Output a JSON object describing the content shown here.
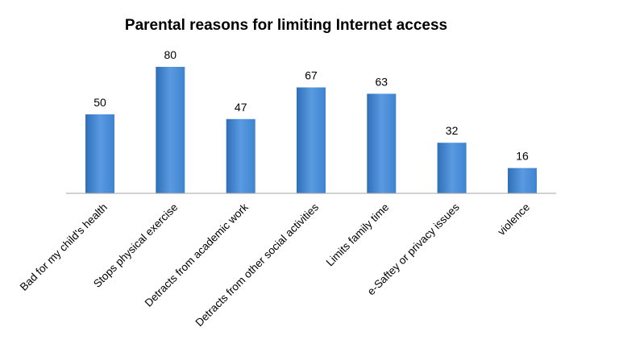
{
  "chart_data": {
    "type": "bar",
    "title": "Parental reasons for limiting Internet access",
    "xlabel": "",
    "ylabel": "",
    "categories": [
      "Bad for my child's health",
      "Stops physical exercise",
      "Detracts from academic work",
      "Detracts from other social activities",
      "Limits family time",
      "e-Saftey or privacy issues",
      "violence"
    ],
    "values": [
      50,
      80,
      47,
      67,
      63,
      32,
      16
    ],
    "ylim": [
      0,
      80
    ],
    "grid": false,
    "legend": "none",
    "data_labels": true,
    "colors": {
      "bar_light": "#5a9ae0",
      "bar_mid": "#3f83d1",
      "bar_dark": "#2f6fb8",
      "axis": "#a6a6a6",
      "text": "#000000"
    }
  }
}
